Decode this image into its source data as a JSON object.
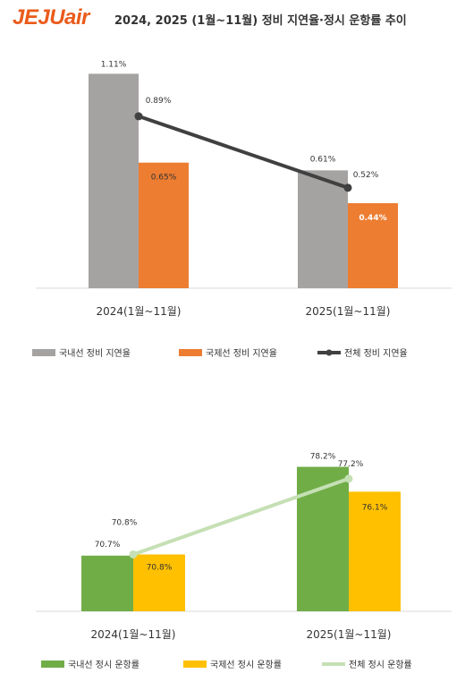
{
  "header": {
    "logo": "JEJUair",
    "title": "2024, 2025 (1월~11월) 정비 지연율·정시 운항률 추이"
  },
  "colors": {
    "brand": "#ea5b1b",
    "domestic_delay": "#a5a2a2",
    "international_delay": "#ed7d31",
    "total_delay": "#404040",
    "domestic_ontime": "#70ad47",
    "international_ontime": "#ffc000",
    "total_ontime": "#c5e0b4"
  },
  "chart_data": [
    {
      "type": "bar",
      "categories": [
        "2024(1월~11월)",
        "2025(1월~11월)"
      ],
      "series": [
        {
          "name": "국내선 정비 지연율",
          "type": "bar",
          "values": [
            1.11,
            0.61
          ],
          "labels": [
            "1.11%",
            "0.61%"
          ]
        },
        {
          "name": "국제선 정비 지연율",
          "type": "bar",
          "values": [
            0.65,
            0.44
          ],
          "labels": [
            "0.65%",
            "0.44%"
          ]
        },
        {
          "name": "전체 정비 지연율",
          "type": "line",
          "values": [
            0.89,
            0.52
          ],
          "labels": [
            "0.89%",
            "0.52%"
          ]
        }
      ],
      "unit": "%",
      "ylim": [
        0,
        1.2
      ],
      "legend": "bottom",
      "grid": false
    },
    {
      "type": "bar",
      "categories": [
        "2024(1월~11월)",
        "2025(1월~11월)"
      ],
      "series": [
        {
          "name": "국내선 정시 운항률",
          "type": "bar",
          "values": [
            70.7,
            78.2
          ],
          "labels": [
            "70.7%",
            "78.2%"
          ]
        },
        {
          "name": "국제선 정시 운항률",
          "type": "bar",
          "values": [
            70.8,
            76.1
          ],
          "labels": [
            "70.8%",
            "76.1%"
          ]
        },
        {
          "name": "전체 정시 운항률",
          "type": "line",
          "values": [
            70.8,
            77.2
          ],
          "labels": [
            "70.8%",
            "77.2%"
          ]
        }
      ],
      "unit": "%",
      "ylim": [
        66,
        79
      ],
      "legend": "bottom",
      "grid": false
    }
  ]
}
